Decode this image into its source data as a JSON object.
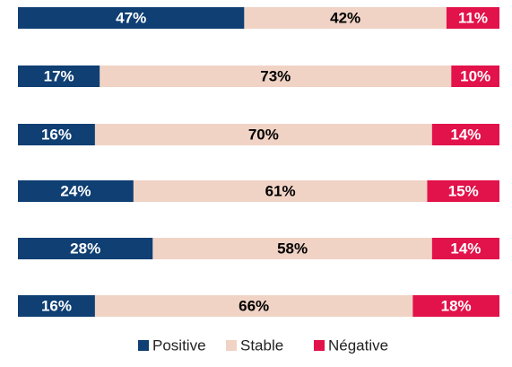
{
  "chart_data": {
    "type": "stacked_bar_horizontal",
    "categories": [
      null,
      null,
      null,
      null,
      null,
      null
    ],
    "xlim": [
      0,
      100
    ],
    "legend": "bottom",
    "series": [
      {
        "name": "Positive",
        "color": "#0f3f73",
        "values": [
          47,
          17,
          16,
          24,
          28,
          16
        ],
        "value_labels": [
          "47%",
          "17%",
          "16%",
          "24%",
          "28%",
          "16%"
        ]
      },
      {
        "name": "Stable",
        "color": "#f0d3c5",
        "values": [
          42,
          73,
          70,
          61,
          58,
          66
        ],
        "value_labels": [
          "42%",
          "73%",
          "70%",
          "61%",
          "58%",
          "66%"
        ]
      },
      {
        "name": "Négative",
        "color": "#e2124a",
        "values": [
          11,
          10,
          14,
          15,
          14,
          18
        ],
        "value_labels": [
          "11%",
          "10%",
          "14%",
          "15%",
          "14%",
          "18%"
        ]
      }
    ]
  }
}
